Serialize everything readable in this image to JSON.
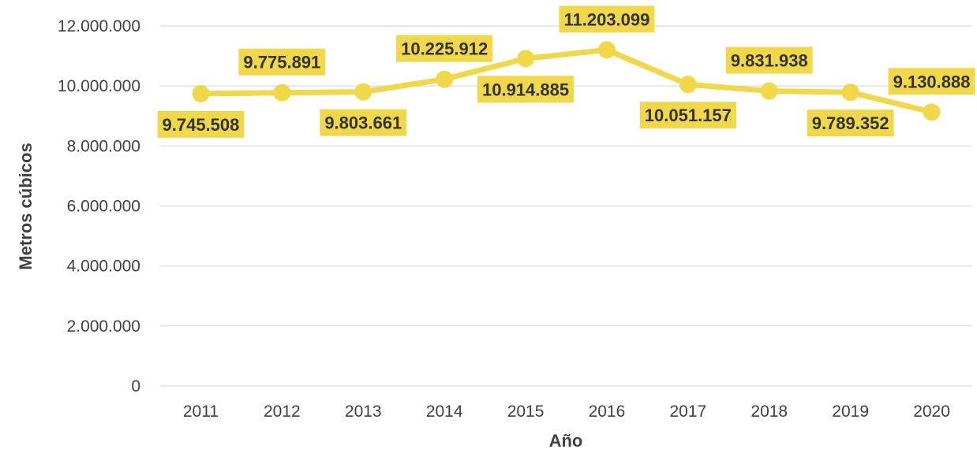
{
  "chart_data": {
    "type": "line",
    "xlabel": "Año",
    "ylabel": "Metros cúbicos",
    "ylim": [
      0,
      12000000
    ],
    "grid": true,
    "legend": "none",
    "colors": {
      "series": "#F0D84A",
      "label_bg": "#F0D84A",
      "label_text": "#333333",
      "grid": "#D9D9D9",
      "axis_text": "#404040"
    },
    "y_ticks": [
      {
        "value": 0,
        "label": "0"
      },
      {
        "value": 2000000,
        "label": "2.000.000"
      },
      {
        "value": 4000000,
        "label": "4.000.000"
      },
      {
        "value": 6000000,
        "label": "6.000.000"
      },
      {
        "value": 8000000,
        "label": "8.000.000"
      },
      {
        "value": 10000000,
        "label": "10.000.000"
      },
      {
        "value": 12000000,
        "label": "12.000.000"
      }
    ],
    "categories": [
      "2011",
      "2012",
      "2013",
      "2014",
      "2015",
      "2016",
      "2017",
      "2018",
      "2019",
      "2020"
    ],
    "series": [
      {
        "values": [
          9745508,
          9775891,
          9803661,
          10225912,
          10914885,
          11203099,
          10051157,
          9831938,
          9789352,
          9130888
        ],
        "labels": [
          "9.745.508",
          "9.775.891",
          "9.803.661",
          "10.225.912",
          "10.914.885",
          "11.203.099",
          "10.051.157",
          "9.831.938",
          "9.789.352",
          "9.130.888"
        ],
        "label_positions": [
          "below",
          "above",
          "below",
          "above",
          "below",
          "above",
          "below",
          "above",
          "below",
          "above"
        ]
      }
    ]
  }
}
